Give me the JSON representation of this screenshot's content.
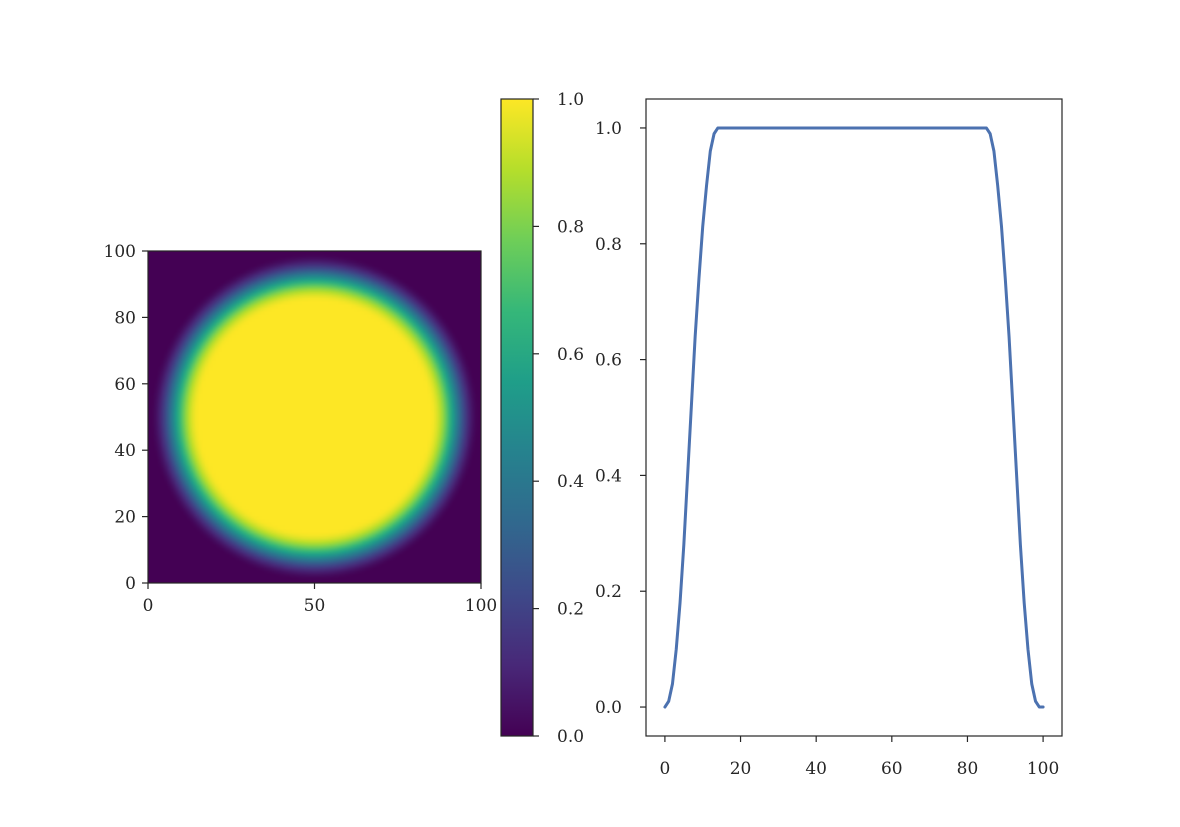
{
  "chart_data": [
    {
      "type": "heatmap",
      "title": "",
      "xlabel": "",
      "ylabel": "",
      "description_of_values": "Radially symmetric smooth disk: value 1.0 inside radius ~35, smooth falloff to 0 between radius ~35 and ~50, 0 outside; centered at (50, 50) on a 101x101 grid",
      "grid_size": [
        101,
        101
      ],
      "center": [
        50,
        50
      ],
      "inner_radius": 35,
      "outer_radius": 50,
      "value_inside": 1.0,
      "value_outside": 0.0,
      "colormap": "viridis",
      "xlim": [
        0,
        100
      ],
      "ylim": [
        0,
        100
      ],
      "xticks": [
        "0",
        "50",
        "100"
      ],
      "yticks": [
        "0",
        "20",
        "40",
        "60",
        "80",
        "100"
      ],
      "origin": "lower",
      "grid": false
    },
    {
      "type": "colorbar",
      "colormap": "viridis",
      "vmin": 0.0,
      "vmax": 1.0,
      "ticks": [
        "0.0",
        "0.2",
        "0.4",
        "0.6",
        "0.8",
        "1.0"
      ],
      "colors": [
        "#440154",
        "#482878",
        "#3e4989",
        "#31688e",
        "#26828e",
        "#1f9e89",
        "#35b779",
        "#6ece58",
        "#b5de2b",
        "#fde725"
      ]
    },
    {
      "type": "line",
      "title": "",
      "xlabel": "",
      "ylabel": "",
      "xlim": [
        -5,
        105
      ],
      "ylim": [
        -0.05,
        1.05
      ],
      "xticks": [
        "0",
        "20",
        "40",
        "60",
        "80",
        "100"
      ],
      "yticks": [
        "0.0",
        "0.2",
        "0.4",
        "0.6",
        "0.8",
        "1.0"
      ],
      "grid": false,
      "series": [
        {
          "color": "#4c72b0",
          "x": [
            0,
            1,
            2,
            3,
            4,
            5,
            6,
            7,
            8,
            9,
            10,
            11,
            12,
            13,
            14,
            15,
            20,
            30,
            40,
            50,
            60,
            70,
            80,
            85,
            86,
            87,
            88,
            89,
            90,
            91,
            92,
            93,
            94,
            95,
            96,
            97,
            98,
            99,
            100
          ],
          "y": [
            0.0,
            0.01,
            0.04,
            0.1,
            0.18,
            0.28,
            0.4,
            0.52,
            0.64,
            0.74,
            0.83,
            0.9,
            0.96,
            0.99,
            1.0,
            1.0,
            1.0,
            1.0,
            1.0,
            1.0,
            1.0,
            1.0,
            1.0,
            1.0,
            0.99,
            0.96,
            0.9,
            0.83,
            0.74,
            0.64,
            0.52,
            0.4,
            0.28,
            0.18,
            0.1,
            0.04,
            0.01,
            0.0,
            0.0
          ]
        }
      ]
    }
  ]
}
